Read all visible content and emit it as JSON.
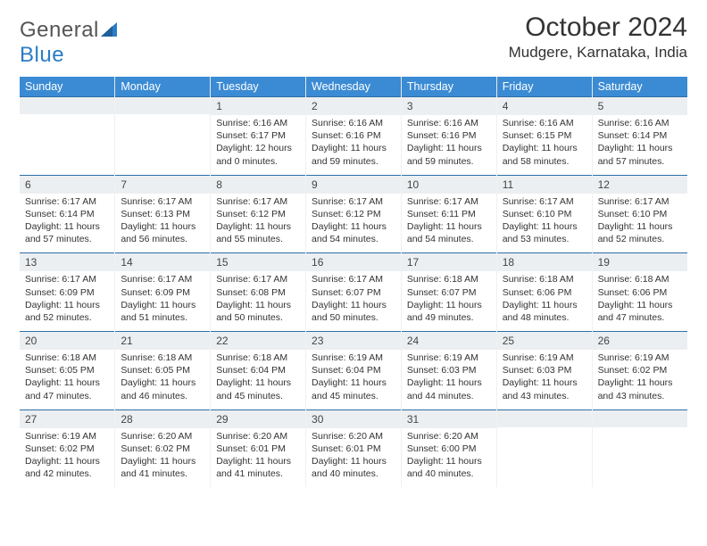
{
  "logo": {
    "word1": "General",
    "word2": "Blue"
  },
  "header": {
    "month": "October 2024",
    "location": "Mudgere, Karnataka, India"
  },
  "dayNames": [
    "Sunday",
    "Monday",
    "Tuesday",
    "Wednesday",
    "Thursday",
    "Friday",
    "Saturday"
  ],
  "colors": {
    "header_bg": "#3b8bd4",
    "day_border": "#2f6ea8",
    "dayhead_bg": "#eceff1",
    "logo_blue": "#2b7cc4"
  },
  "calendar": {
    "startOffset": 2,
    "days": [
      {
        "n": 1,
        "sunrise": "6:16 AM",
        "sunset": "6:17 PM",
        "daylight": "12 hours and 0 minutes."
      },
      {
        "n": 2,
        "sunrise": "6:16 AM",
        "sunset": "6:16 PM",
        "daylight": "11 hours and 59 minutes."
      },
      {
        "n": 3,
        "sunrise": "6:16 AM",
        "sunset": "6:16 PM",
        "daylight": "11 hours and 59 minutes."
      },
      {
        "n": 4,
        "sunrise": "6:16 AM",
        "sunset": "6:15 PM",
        "daylight": "11 hours and 58 minutes."
      },
      {
        "n": 5,
        "sunrise": "6:16 AM",
        "sunset": "6:14 PM",
        "daylight": "11 hours and 57 minutes."
      },
      {
        "n": 6,
        "sunrise": "6:17 AM",
        "sunset": "6:14 PM",
        "daylight": "11 hours and 57 minutes."
      },
      {
        "n": 7,
        "sunrise": "6:17 AM",
        "sunset": "6:13 PM",
        "daylight": "11 hours and 56 minutes."
      },
      {
        "n": 8,
        "sunrise": "6:17 AM",
        "sunset": "6:12 PM",
        "daylight": "11 hours and 55 minutes."
      },
      {
        "n": 9,
        "sunrise": "6:17 AM",
        "sunset": "6:12 PM",
        "daylight": "11 hours and 54 minutes."
      },
      {
        "n": 10,
        "sunrise": "6:17 AM",
        "sunset": "6:11 PM",
        "daylight": "11 hours and 54 minutes."
      },
      {
        "n": 11,
        "sunrise": "6:17 AM",
        "sunset": "6:10 PM",
        "daylight": "11 hours and 53 minutes."
      },
      {
        "n": 12,
        "sunrise": "6:17 AM",
        "sunset": "6:10 PM",
        "daylight": "11 hours and 52 minutes."
      },
      {
        "n": 13,
        "sunrise": "6:17 AM",
        "sunset": "6:09 PM",
        "daylight": "11 hours and 52 minutes."
      },
      {
        "n": 14,
        "sunrise": "6:17 AM",
        "sunset": "6:09 PM",
        "daylight": "11 hours and 51 minutes."
      },
      {
        "n": 15,
        "sunrise": "6:17 AM",
        "sunset": "6:08 PM",
        "daylight": "11 hours and 50 minutes."
      },
      {
        "n": 16,
        "sunrise": "6:17 AM",
        "sunset": "6:07 PM",
        "daylight": "11 hours and 50 minutes."
      },
      {
        "n": 17,
        "sunrise": "6:18 AM",
        "sunset": "6:07 PM",
        "daylight": "11 hours and 49 minutes."
      },
      {
        "n": 18,
        "sunrise": "6:18 AM",
        "sunset": "6:06 PM",
        "daylight": "11 hours and 48 minutes."
      },
      {
        "n": 19,
        "sunrise": "6:18 AM",
        "sunset": "6:06 PM",
        "daylight": "11 hours and 47 minutes."
      },
      {
        "n": 20,
        "sunrise": "6:18 AM",
        "sunset": "6:05 PM",
        "daylight": "11 hours and 47 minutes."
      },
      {
        "n": 21,
        "sunrise": "6:18 AM",
        "sunset": "6:05 PM",
        "daylight": "11 hours and 46 minutes."
      },
      {
        "n": 22,
        "sunrise": "6:18 AM",
        "sunset": "6:04 PM",
        "daylight": "11 hours and 45 minutes."
      },
      {
        "n": 23,
        "sunrise": "6:19 AM",
        "sunset": "6:04 PM",
        "daylight": "11 hours and 45 minutes."
      },
      {
        "n": 24,
        "sunrise": "6:19 AM",
        "sunset": "6:03 PM",
        "daylight": "11 hours and 44 minutes."
      },
      {
        "n": 25,
        "sunrise": "6:19 AM",
        "sunset": "6:03 PM",
        "daylight": "11 hours and 43 minutes."
      },
      {
        "n": 26,
        "sunrise": "6:19 AM",
        "sunset": "6:02 PM",
        "daylight": "11 hours and 43 minutes."
      },
      {
        "n": 27,
        "sunrise": "6:19 AM",
        "sunset": "6:02 PM",
        "daylight": "11 hours and 42 minutes."
      },
      {
        "n": 28,
        "sunrise": "6:20 AM",
        "sunset": "6:02 PM",
        "daylight": "11 hours and 41 minutes."
      },
      {
        "n": 29,
        "sunrise": "6:20 AM",
        "sunset": "6:01 PM",
        "daylight": "11 hours and 41 minutes."
      },
      {
        "n": 30,
        "sunrise": "6:20 AM",
        "sunset": "6:01 PM",
        "daylight": "11 hours and 40 minutes."
      },
      {
        "n": 31,
        "sunrise": "6:20 AM",
        "sunset": "6:00 PM",
        "daylight": "11 hours and 40 minutes."
      }
    ]
  }
}
